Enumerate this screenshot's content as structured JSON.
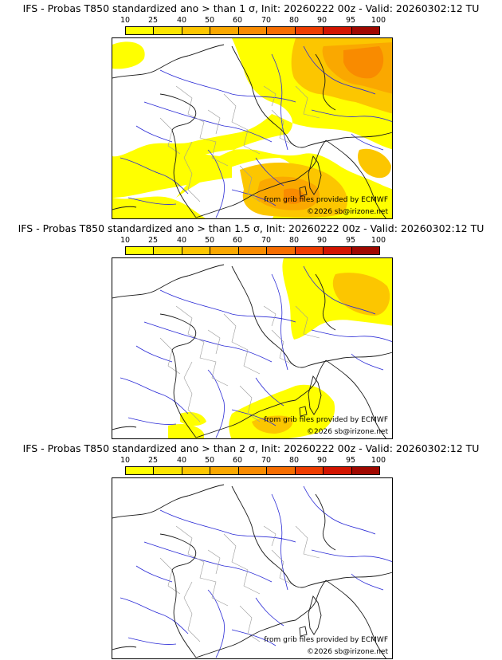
{
  "legend": {
    "labels": [
      "10",
      "25",
      "40",
      "50",
      "60",
      "70",
      "80",
      "90",
      "95",
      "100"
    ],
    "colors": [
      "#ffff00",
      "#fbe500",
      "#fcc600",
      "#faa800",
      "#f98b00",
      "#f66d00",
      "#ee3c00",
      "#d21400",
      "#a00800",
      "#5e0000"
    ]
  },
  "panels": [
    {
      "title": "IFS - Probas T850  standardized ano > than 1 σ, Init: 20260222 00z - Valid: 20260302:12 TU",
      "provider": "from grib files provided by ECMWF",
      "copyright": "©2026 sb@irizone.net",
      "coverage": "high"
    },
    {
      "title": "IFS - Probas T850  standardized ano > than 1.5 σ, Init: 20260222 00z - Valid: 20260302:12 TU",
      "provider": "from grib files provided by ECMWF",
      "copyright": "©2026 sb@irizone.net",
      "coverage": "medium"
    },
    {
      "title": "IFS - Probas T850  standardized ano > than 2 σ, Init: 20260222 00z - Valid: 20260302:12 TU",
      "provider": "from grib files provided by ECMWF",
      "copyright": "©2026 sb@irizone.net",
      "coverage": "none"
    }
  ]
}
